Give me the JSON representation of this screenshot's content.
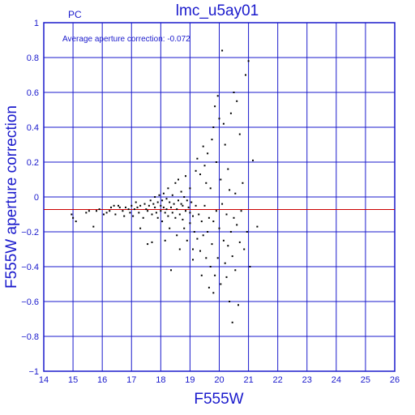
{
  "chart_data": {
    "type": "scatter",
    "title": "lmc_u5ay01",
    "subtitle": "PC",
    "annotation": "Average aperture correction: -0.072",
    "xlabel": "F555W",
    "ylabel": "F555W aperture correction",
    "xlim": [
      14,
      26
    ],
    "ylim": [
      -1,
      1
    ],
    "x_ticks": [
      "14",
      "15",
      "16",
      "17",
      "18",
      "19",
      "20",
      "21",
      "22",
      "23",
      "24",
      "25",
      "26"
    ],
    "y_ticks": [
      "−1",
      "−0.8",
      "−0.6",
      "−0.4",
      "−0.2",
      "0",
      "0.2",
      "0.4",
      "0.6",
      "0.8",
      "1"
    ],
    "grid": true,
    "reference_line": {
      "y": -0.072,
      "color": "#cc0000"
    },
    "colors": {
      "axes": "#1a1acc",
      "points": "#000000"
    },
    "points": [
      [
        14.95,
        -0.1
      ],
      [
        15.0,
        -0.12
      ],
      [
        15.1,
        -0.14
      ],
      [
        15.45,
        -0.09
      ],
      [
        15.55,
        -0.08
      ],
      [
        15.7,
        -0.17
      ],
      [
        15.8,
        -0.08
      ],
      [
        15.9,
        -0.07
      ],
      [
        16.05,
        -0.1
      ],
      [
        16.15,
        -0.09
      ],
      [
        16.25,
        -0.08
      ],
      [
        16.3,
        -0.06
      ],
      [
        16.4,
        -0.05
      ],
      [
        16.45,
        -0.1
      ],
      [
        16.55,
        -0.05
      ],
      [
        16.6,
        -0.06
      ],
      [
        16.7,
        -0.08
      ],
      [
        16.75,
        -0.11
      ],
      [
        16.8,
        -0.06
      ],
      [
        16.9,
        -0.07
      ],
      [
        16.95,
        -0.09
      ],
      [
        17.0,
        -0.05
      ],
      [
        17.05,
        -0.11
      ],
      [
        17.1,
        -0.07
      ],
      [
        17.15,
        -0.03
      ],
      [
        17.2,
        -0.06
      ],
      [
        17.25,
        -0.09
      ],
      [
        17.3,
        -0.05
      ],
      [
        17.3,
        -0.18
      ],
      [
        17.4,
        -0.12
      ],
      [
        17.45,
        -0.04
      ],
      [
        17.5,
        -0.07
      ],
      [
        17.55,
        -0.08
      ],
      [
        17.55,
        -0.27
      ],
      [
        17.6,
        -0.05
      ],
      [
        17.65,
        -0.02
      ],
      [
        17.7,
        -0.1
      ],
      [
        17.7,
        -0.26
      ],
      [
        17.75,
        -0.04
      ],
      [
        17.8,
        -0.06
      ],
      [
        17.8,
        0.0
      ],
      [
        17.85,
        -0.09
      ],
      [
        17.9,
        -0.03
      ],
      [
        17.9,
        -0.12
      ],
      [
        17.95,
        0.01
      ],
      [
        18.0,
        -0.05
      ],
      [
        18.0,
        -0.08
      ],
      [
        18.05,
        -0.02
      ],
      [
        18.05,
        -0.14
      ],
      [
        18.1,
        -0.06
      ],
      [
        18.1,
        0.02
      ],
      [
        18.15,
        -0.09
      ],
      [
        18.15,
        -0.25
      ],
      [
        18.2,
        -0.01
      ],
      [
        18.2,
        -0.07
      ],
      [
        18.25,
        0.05
      ],
      [
        18.25,
        -0.11
      ],
      [
        18.3,
        -0.03
      ],
      [
        18.3,
        -0.18
      ],
      [
        18.35,
        -0.06
      ],
      [
        18.35,
        -0.42
      ],
      [
        18.4,
        0.01
      ],
      [
        18.4,
        -0.09
      ],
      [
        18.45,
        -0.04
      ],
      [
        18.5,
        -0.12
      ],
      [
        18.5,
        0.08
      ],
      [
        18.55,
        -0.07
      ],
      [
        18.55,
        -0.22
      ],
      [
        18.6,
        -0.02
      ],
      [
        18.6,
        0.1
      ],
      [
        18.65,
        -0.1
      ],
      [
        18.65,
        -0.3
      ],
      [
        18.7,
        -0.04
      ],
      [
        18.7,
        0.03
      ],
      [
        18.75,
        -0.13
      ],
      [
        18.75,
        -0.05
      ],
      [
        18.8,
        0.0
      ],
      [
        18.8,
        -0.18
      ],
      [
        18.85,
        -0.08
      ],
      [
        18.85,
        0.12
      ],
      [
        18.9,
        -0.02
      ],
      [
        18.9,
        -0.25
      ],
      [
        18.95,
        -0.06
      ],
      [
        19.0,
        -0.09
      ],
      [
        19.0,
        -0.15
      ],
      [
        19.0,
        0.05
      ],
      [
        19.05,
        -0.03
      ],
      [
        19.1,
        -0.11
      ],
      [
        19.1,
        -0.3
      ],
      [
        19.1,
        -0.36
      ],
      [
        19.15,
        -0.2
      ],
      [
        19.2,
        -0.05
      ],
      [
        19.2,
        0.15
      ],
      [
        19.25,
        -0.24
      ],
      [
        19.25,
        0.22
      ],
      [
        19.3,
        -0.1
      ],
      [
        19.35,
        -0.31
      ],
      [
        19.35,
        0.13
      ],
      [
        19.4,
        -0.14
      ],
      [
        19.4,
        -0.45
      ],
      [
        19.45,
        -0.22
      ],
      [
        19.45,
        0.29
      ],
      [
        19.5,
        -0.05
      ],
      [
        19.5,
        0.18
      ],
      [
        19.55,
        -0.35
      ],
      [
        19.55,
        0.08
      ],
      [
        19.6,
        -0.2
      ],
      [
        19.6,
        0.25
      ],
      [
        19.65,
        -0.12
      ],
      [
        19.65,
        -0.52
      ],
      [
        19.7,
        -0.4
      ],
      [
        19.7,
        0.05
      ],
      [
        19.75,
        -0.27
      ],
      [
        19.75,
        0.33
      ],
      [
        19.8,
        -0.14
      ],
      [
        19.8,
        0.4
      ],
      [
        19.8,
        -0.55
      ],
      [
        19.85,
        -0.45
      ],
      [
        19.85,
        0.52
      ],
      [
        19.9,
        -0.08
      ],
      [
        19.9,
        0.2
      ],
      [
        19.95,
        -0.35
      ],
      [
        19.95,
        0.58
      ],
      [
        20.0,
        -0.18
      ],
      [
        20.0,
        0.45
      ],
      [
        20.05,
        -0.5
      ],
      [
        20.05,
        0.1
      ],
      [
        20.1,
        -0.04
      ],
      [
        20.1,
        0.84
      ],
      [
        20.15,
        -0.25
      ],
      [
        20.15,
        0.42
      ],
      [
        20.2,
        -0.38
      ],
      [
        20.2,
        0.3
      ],
      [
        20.25,
        -0.1
      ],
      [
        20.25,
        -0.46
      ],
      [
        20.3,
        -0.28
      ],
      [
        20.3,
        0.16
      ],
      [
        20.35,
        -0.6
      ],
      [
        20.35,
        0.04
      ],
      [
        20.4,
        -0.2
      ],
      [
        20.4,
        0.48
      ],
      [
        20.45,
        -0.72
      ],
      [
        20.45,
        -0.34
      ],
      [
        20.5,
        -0.12
      ],
      [
        20.5,
        0.6
      ],
      [
        20.55,
        -0.42
      ],
      [
        20.55,
        0.02
      ],
      [
        20.6,
        -0.16
      ],
      [
        20.6,
        0.55
      ],
      [
        20.65,
        -0.62
      ],
      [
        20.7,
        -0.26
      ],
      [
        20.7,
        0.36
      ],
      [
        20.75,
        -0.08
      ],
      [
        20.8,
        0.08
      ],
      [
        20.85,
        -0.3
      ],
      [
        20.9,
        0.7
      ],
      [
        20.95,
        -0.2
      ],
      [
        21.0,
        0.78
      ],
      [
        21.05,
        -0.4
      ],
      [
        21.15,
        0.21
      ],
      [
        21.3,
        -0.17
      ]
    ]
  }
}
